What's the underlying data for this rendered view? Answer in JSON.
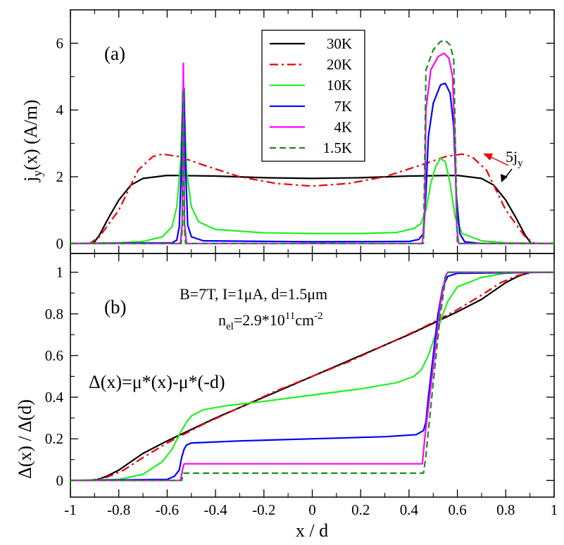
{
  "chart_data": [
    {
      "panel": "a",
      "type": "line",
      "panel_label": "(a)",
      "ylabel_main": "j",
      "ylabel_sub": "y",
      "ylabel_rest": "(x) (A/m)",
      "xlim": [
        -1,
        1
      ],
      "ylim": [
        -0.3,
        7
      ],
      "yticks": [
        0,
        2,
        4,
        6
      ],
      "yticklabels": [
        "0",
        "2",
        "4",
        "6"
      ],
      "annotation_main": "5j",
      "annotation_sub": "y",
      "legend_position": "top-center",
      "series": [
        {
          "name": "30K",
          "color": "#000000",
          "dash": "solid",
          "points": [
            [
              -1,
              0
            ],
            [
              -0.905,
              0
            ],
            [
              -0.88,
              0.25
            ],
            [
              -0.84,
              0.8
            ],
            [
              -0.8,
              1.3
            ],
            [
              -0.75,
              1.75
            ],
            [
              -0.7,
              1.95
            ],
            [
              -0.6,
              2.04
            ],
            [
              -0.4,
              2.02
            ],
            [
              -0.2,
              1.97
            ],
            [
              0,
              1.95
            ],
            [
              0.2,
              1.97
            ],
            [
              0.4,
              2.02
            ],
            [
              0.6,
              2.04
            ],
            [
              0.7,
              1.95
            ],
            [
              0.75,
              1.75
            ],
            [
              0.8,
              1.3
            ],
            [
              0.84,
              0.8
            ],
            [
              0.88,
              0.25
            ],
            [
              0.905,
              0
            ],
            [
              1,
              0
            ]
          ]
        },
        {
          "name": "20K",
          "color": "#e8000b",
          "dash": "dashdot",
          "points": [
            [
              -1,
              0
            ],
            [
              -0.92,
              0
            ],
            [
              -0.88,
              0.2
            ],
            [
              -0.8,
              1.0
            ],
            [
              -0.72,
              2.2
            ],
            [
              -0.66,
              2.6
            ],
            [
              -0.62,
              2.68
            ],
            [
              -0.55,
              2.6
            ],
            [
              -0.45,
              2.35
            ],
            [
              -0.3,
              2.0
            ],
            [
              -0.15,
              1.8
            ],
            [
              0,
              1.72
            ],
            [
              0.15,
              1.8
            ],
            [
              0.3,
              2.0
            ],
            [
              0.45,
              2.35
            ],
            [
              0.55,
              2.6
            ],
            [
              0.62,
              2.68
            ],
            [
              0.66,
              2.6
            ],
            [
              0.72,
              2.2
            ],
            [
              0.8,
              1.0
            ],
            [
              0.88,
              0.2
            ],
            [
              0.92,
              0
            ],
            [
              1,
              0
            ]
          ]
        },
        {
          "name": "10K",
          "color": "#22ee22",
          "dash": "solid",
          "points": [
            [
              -1,
              0
            ],
            [
              -0.8,
              0.02
            ],
            [
              -0.7,
              0.06
            ],
            [
              -0.62,
              0.2
            ],
            [
              -0.58,
              0.5
            ],
            [
              -0.56,
              1.1
            ],
            [
              -0.545,
              2.4
            ],
            [
              -0.535,
              4.3
            ],
            [
              -0.53,
              4.35
            ],
            [
              -0.52,
              2.2
            ],
            [
              -0.5,
              1.1
            ],
            [
              -0.47,
              0.65
            ],
            [
              -0.4,
              0.42
            ],
            [
              -0.2,
              0.32
            ],
            [
              0,
              0.3
            ],
            [
              0.2,
              0.3
            ],
            [
              0.35,
              0.33
            ],
            [
              0.42,
              0.45
            ],
            [
              0.45,
              0.6
            ],
            [
              0.47,
              1.0
            ],
            [
              0.49,
              1.8
            ],
            [
              0.51,
              2.3
            ],
            [
              0.53,
              2.55
            ],
            [
              0.55,
              2.45
            ],
            [
              0.57,
              1.8
            ],
            [
              0.59,
              0.8
            ],
            [
              0.62,
              0.3
            ],
            [
              0.7,
              0.08
            ],
            [
              0.8,
              0.02
            ],
            [
              1,
              0
            ]
          ]
        },
        {
          "name": "7K",
          "color": "#0000ff",
          "dash": "solid",
          "points": [
            [
              -1,
              0
            ],
            [
              -0.58,
              0.02
            ],
            [
              -0.56,
              0.1
            ],
            [
              -0.55,
              0.5
            ],
            [
              -0.54,
              2.5
            ],
            [
              -0.535,
              4.6
            ],
            [
              -0.53,
              4.65
            ],
            [
              -0.525,
              2.5
            ],
            [
              -0.515,
              0.55
            ],
            [
              -0.5,
              0.2
            ],
            [
              -0.45,
              0.08
            ],
            [
              0,
              0.05
            ],
            [
              0.4,
              0.06
            ],
            [
              0.44,
              0.12
            ],
            [
              0.46,
              0.3
            ],
            [
              0.47,
              1.5
            ],
            [
              0.48,
              3.2
            ],
            [
              0.5,
              4.2
            ],
            [
              0.53,
              4.75
            ],
            [
              0.55,
              4.8
            ],
            [
              0.57,
              4.5
            ],
            [
              0.585,
              3.5
            ],
            [
              0.595,
              1.5
            ],
            [
              0.61,
              0.3
            ],
            [
              0.63,
              0.05
            ],
            [
              0.7,
              0
            ],
            [
              1,
              0
            ]
          ]
        },
        {
          "name": "4K",
          "color": "#ff00ff",
          "dash": "solid",
          "points": [
            [
              -1,
              0
            ],
            [
              -0.545,
              0
            ],
            [
              -0.538,
              0.6
            ],
            [
              -0.533,
              5.4
            ],
            [
              -0.528,
              0.6
            ],
            [
              -0.52,
              0
            ],
            [
              0.455,
              0
            ],
            [
              0.465,
              1.0
            ],
            [
              0.47,
              4.0
            ],
            [
              0.49,
              5.2
            ],
            [
              0.52,
              5.6
            ],
            [
              0.545,
              5.7
            ],
            [
              0.565,
              5.55
            ],
            [
              0.58,
              5.0
            ],
            [
              0.59,
              3.0
            ],
            [
              0.597,
              0.5
            ],
            [
              0.605,
              0
            ],
            [
              1,
              0
            ]
          ]
        },
        {
          "name": "1.5K",
          "color": "#1e8c1e",
          "dash": "dashed",
          "points": [
            [
              -1,
              0
            ],
            [
              -0.542,
              0
            ],
            [
              -0.537,
              0.5
            ],
            [
              -0.533,
              4.6
            ],
            [
              -0.529,
              0.5
            ],
            [
              -0.524,
              0
            ],
            [
              0.46,
              0
            ],
            [
              0.465,
              2.5
            ],
            [
              0.47,
              5.2
            ],
            [
              0.5,
              5.8
            ],
            [
              0.53,
              6.05
            ],
            [
              0.55,
              6.08
            ],
            [
              0.57,
              5.95
            ],
            [
              0.585,
              5.5
            ],
            [
              0.593,
              2.5
            ],
            [
              0.6,
              0
            ],
            [
              1,
              0
            ]
          ]
        }
      ]
    },
    {
      "panel": "b",
      "type": "line",
      "panel_label": "(b)",
      "ylabel": "Δ(x) / Δ(d)",
      "xlabel": "x / d",
      "xlim": [
        -1,
        1
      ],
      "ylim": [
        -0.08,
        1.09
      ],
      "xticks": [
        -1,
        -0.8,
        -0.6,
        -0.4,
        -0.2,
        0,
        0.2,
        0.4,
        0.6,
        0.8,
        1
      ],
      "xticklabels": [
        "-1",
        "-0.8",
        "-0.6",
        "-0.4",
        "-0.2",
        "0",
        "0.2",
        "0.4",
        "0.6",
        "0.8",
        "1"
      ],
      "yticks": [
        0,
        0.2,
        0.4,
        0.6,
        0.8,
        1
      ],
      "yticklabels": [
        "0",
        "0.2",
        "0.4",
        "0.6",
        "0.8",
        "1"
      ],
      "params_line1": "B=7T,  I=1μA,  d=1.5μm",
      "params_line2_pre": "n",
      "params_line2_sub": "el",
      "params_line2_mid": "=2.9*10",
      "params_line2_sup": "11",
      "params_line2_post": "cm",
      "params_line2_sup2": "-2",
      "formula": "Δ(x)=μ*(x)-μ*(-d)",
      "series": [
        {
          "name": "30K",
          "color": "#000000",
          "dash": "solid",
          "points": [
            [
              -1,
              0
            ],
            [
              -0.9,
              0
            ],
            [
              -0.85,
              0.02
            ],
            [
              -0.8,
              0.05
            ],
            [
              -0.7,
              0.13
            ],
            [
              -0.6,
              0.19
            ],
            [
              -0.4,
              0.3
            ],
            [
              -0.2,
              0.4
            ],
            [
              0,
              0.5
            ],
            [
              0.2,
              0.6
            ],
            [
              0.4,
              0.7
            ],
            [
              0.6,
              0.81
            ],
            [
              0.7,
              0.87
            ],
            [
              0.8,
              0.95
            ],
            [
              0.85,
              0.98
            ],
            [
              0.9,
              1.0
            ],
            [
              1,
              1.0
            ]
          ]
        },
        {
          "name": "20K",
          "color": "#e8000b",
          "dash": "dashdot",
          "points": [
            [
              -1,
              0
            ],
            [
              -0.92,
              0
            ],
            [
              -0.85,
              0.015
            ],
            [
              -0.78,
              0.05
            ],
            [
              -0.7,
              0.11
            ],
            [
              -0.6,
              0.18
            ],
            [
              -0.55,
              0.21
            ],
            [
              -0.45,
              0.27
            ],
            [
              -0.3,
              0.35
            ],
            [
              -0.15,
              0.43
            ],
            [
              0,
              0.5
            ],
            [
              0.15,
              0.57
            ],
            [
              0.3,
              0.65
            ],
            [
              0.45,
              0.73
            ],
            [
              0.55,
              0.79
            ],
            [
              0.6,
              0.82
            ],
            [
              0.7,
              0.89
            ],
            [
              0.78,
              0.95
            ],
            [
              0.85,
              0.985
            ],
            [
              0.92,
              1.0
            ],
            [
              1,
              1.0
            ]
          ]
        },
        {
          "name": "10K",
          "color": "#22ee22",
          "dash": "solid",
          "points": [
            [
              -1,
              0
            ],
            [
              -0.8,
              0.005
            ],
            [
              -0.7,
              0.03
            ],
            [
              -0.62,
              0.09
            ],
            [
              -0.58,
              0.15
            ],
            [
              -0.55,
              0.22
            ],
            [
              -0.52,
              0.28
            ],
            [
              -0.5,
              0.31
            ],
            [
              -0.45,
              0.34
            ],
            [
              -0.35,
              0.36
            ],
            [
              -0.2,
              0.38
            ],
            [
              0,
              0.41
            ],
            [
              0.2,
              0.44
            ],
            [
              0.35,
              0.47
            ],
            [
              0.42,
              0.5
            ],
            [
              0.45,
              0.53
            ],
            [
              0.48,
              0.6
            ],
            [
              0.5,
              0.67
            ],
            [
              0.52,
              0.73
            ],
            [
              0.54,
              0.8
            ],
            [
              0.56,
              0.86
            ],
            [
              0.6,
              0.93
            ],
            [
              0.7,
              0.975
            ],
            [
              0.8,
              0.995
            ],
            [
              0.9,
              1.0
            ],
            [
              1,
              1.0
            ]
          ]
        },
        {
          "name": "7K",
          "color": "#0000ff",
          "dash": "solid",
          "points": [
            [
              -1,
              0
            ],
            [
              -0.6,
              0.005
            ],
            [
              -0.57,
              0.02
            ],
            [
              -0.55,
              0.05
            ],
            [
              -0.54,
              0.11
            ],
            [
              -0.53,
              0.15
            ],
            [
              -0.52,
              0.17
            ],
            [
              -0.5,
              0.18
            ],
            [
              -0.3,
              0.19
            ],
            [
              0,
              0.2
            ],
            [
              0.3,
              0.21
            ],
            [
              0.43,
              0.22
            ],
            [
              0.46,
              0.24
            ],
            [
              0.47,
              0.28
            ],
            [
              0.48,
              0.4
            ],
            [
              0.5,
              0.6
            ],
            [
              0.52,
              0.8
            ],
            [
              0.54,
              0.93
            ],
            [
              0.56,
              0.98
            ],
            [
              0.6,
              0.995
            ],
            [
              1,
              1.0
            ]
          ]
        },
        {
          "name": "4K",
          "color": "#ff00ff",
          "dash": "solid",
          "points": [
            [
              -1,
              0
            ],
            [
              -0.545,
              0
            ],
            [
              -0.535,
              0.06
            ],
            [
              -0.53,
              0.08
            ],
            [
              0.455,
              0.08
            ],
            [
              0.465,
              0.2
            ],
            [
              0.5,
              0.55
            ],
            [
              0.53,
              0.85
            ],
            [
              0.55,
              0.98
            ],
            [
              0.56,
              1.0
            ],
            [
              1,
              1.0
            ]
          ]
        },
        {
          "name": "1.5K",
          "color": "#1e8c1e",
          "dash": "dashed",
          "points": [
            [
              -1,
              0
            ],
            [
              -0.54,
              0
            ],
            [
              -0.532,
              0.035
            ],
            [
              0.46,
              0.035
            ],
            [
              0.47,
              0.12
            ],
            [
              0.5,
              0.47
            ],
            [
              0.53,
              0.8
            ],
            [
              0.555,
              1.0
            ],
            [
              1,
              1.0
            ]
          ]
        }
      ]
    }
  ]
}
